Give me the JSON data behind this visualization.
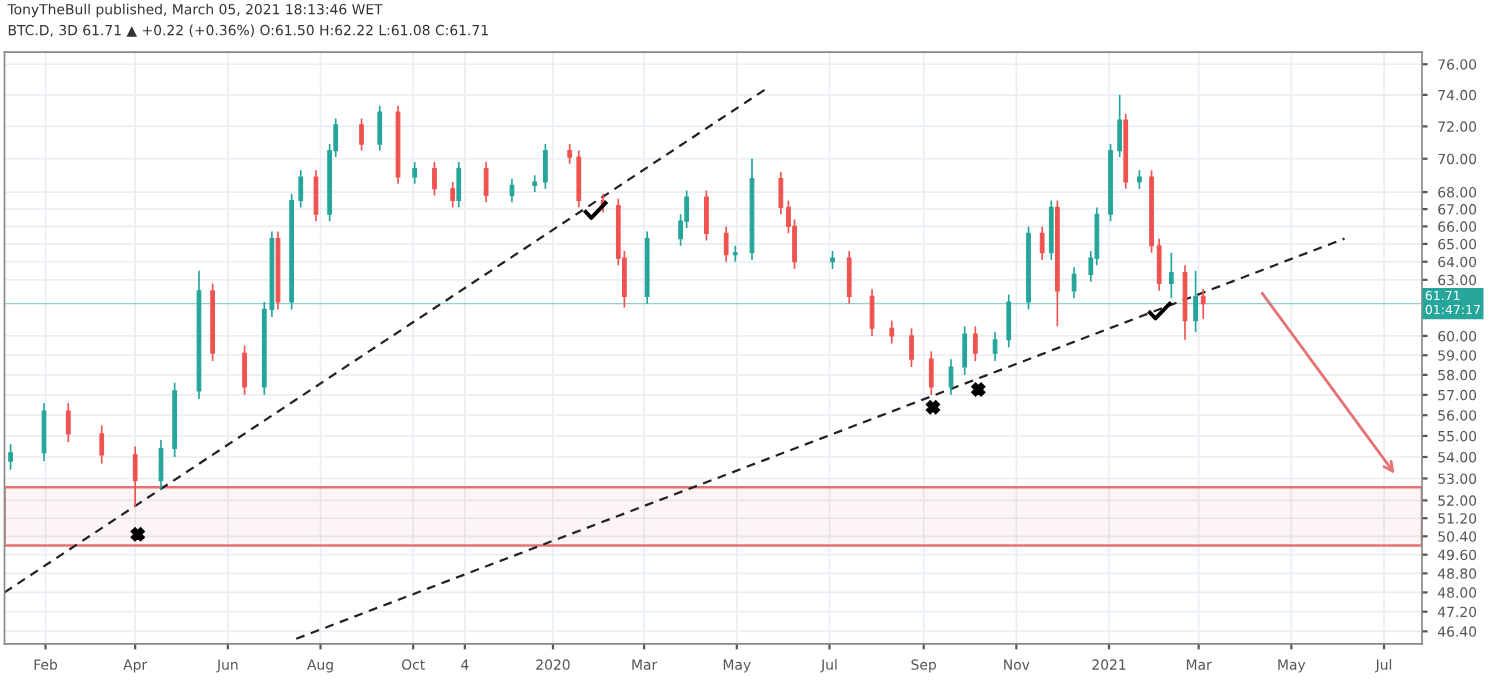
{
  "chart_data": {
    "type": "candlestick",
    "title": "BTC.D, 3D 61.71 ▲ +0.22 (+0.36%) O:61.50 H:62.22 L:61.08 C:61.71",
    "annotations": [
      "TonyTheBull published, March 05, 2021 18:13:46 WET"
    ],
    "x": [
      "2019-01-09",
      "2019-01-31",
      "2019-02-16",
      "2019-03-10",
      "2019-04-01",
      "2019-04-18",
      "2019-04-27",
      "2019-05-13",
      "2019-05-22",
      "2019-06-12",
      "2019-06-25",
      "2019-06-30",
      "2019-07-04",
      "2019-07-13",
      "2019-07-19",
      "2019-07-29",
      "2019-08-07",
      "2019-08-11",
      "2019-08-28",
      "2019-09-09",
      "2019-09-21",
      "2019-10-02",
      "2019-10-15",
      "2019-10-27",
      "2019-10-31",
      "2019-11-18",
      "2019-12-05",
      "2019-12-20",
      "2019-12-27",
      "2020-01-12",
      "2020-01-18",
      "2020-02-03",
      "2020-02-13",
      "2020-02-17",
      "2020-03-03",
      "2020-03-25",
      "2020-03-29",
      "2020-04-11",
      "2020-04-24",
      "2020-04-30",
      "2020-05-11",
      "2020-05-30",
      "2020-06-04",
      "2020-06-08",
      "2020-07-03",
      "2020-07-14",
      "2020-07-29",
      "2020-08-11",
      "2020-08-24",
      "2020-09-06",
      "2020-09-19",
      "2020-09-28",
      "2020-10-05",
      "2020-10-18",
      "2020-10-27",
      "2020-11-09",
      "2020-11-18",
      "2020-11-24",
      "2020-11-28",
      "2020-12-09",
      "2020-12-20",
      "2020-12-24",
      "2021-01-02",
      "2021-01-08",
      "2021-01-12",
      "2021-01-21",
      "2021-01-29",
      "2021-02-03",
      "2021-02-11",
      "2021-02-20",
      "2021-02-27",
      "2021-03-04"
    ],
    "ohlc": [
      [
        53.8,
        54.6,
        53.4,
        54.2
      ],
      [
        54.2,
        56.6,
        53.8,
        56.2
      ],
      [
        56.2,
        56.6,
        54.7,
        55.1
      ],
      [
        55.1,
        55.5,
        53.7,
        54.1
      ],
      [
        54.1,
        54.5,
        51.7,
        52.9
      ],
      [
        52.9,
        54.8,
        52.5,
        54.4
      ],
      [
        54.4,
        57.6,
        54.0,
        57.2
      ],
      [
        57.2,
        63.5,
        56.8,
        62.4
      ],
      [
        62.4,
        62.8,
        58.7,
        59.1
      ],
      [
        59.1,
        59.5,
        57.0,
        57.4
      ],
      [
        57.4,
        61.8,
        57.0,
        61.4
      ],
      [
        61.4,
        65.7,
        61.0,
        65.3
      ],
      [
        65.3,
        65.7,
        61.4,
        61.8
      ],
      [
        61.8,
        67.9,
        61.4,
        67.5
      ],
      [
        67.5,
        69.3,
        67.1,
        68.9
      ],
      [
        68.9,
        69.3,
        66.3,
        66.7
      ],
      [
        66.7,
        70.9,
        66.3,
        70.5
      ],
      [
        70.5,
        72.5,
        70.1,
        72.1
      ],
      [
        72.1,
        72.5,
        70.5,
        70.9
      ],
      [
        70.9,
        73.3,
        70.5,
        72.9
      ],
      [
        72.9,
        73.3,
        68.5,
        68.9
      ],
      [
        68.9,
        69.8,
        68.5,
        69.4
      ],
      [
        69.4,
        69.8,
        67.8,
        68.2
      ],
      [
        68.2,
        68.6,
        67.1,
        67.5
      ],
      [
        67.5,
        69.8,
        67.1,
        69.4
      ],
      [
        69.4,
        69.8,
        67.4,
        67.8
      ],
      [
        67.8,
        68.8,
        67.4,
        68.4
      ],
      [
        68.4,
        69.0,
        68.0,
        68.6
      ],
      [
        68.6,
        70.9,
        68.2,
        70.5
      ],
      [
        70.5,
        70.9,
        69.7,
        70.1
      ],
      [
        70.1,
        70.5,
        67.1,
        67.5
      ],
      [
        67.5,
        67.9,
        66.8,
        67.2
      ],
      [
        67.2,
        67.6,
        63.8,
        64.2
      ],
      [
        64.2,
        64.6,
        61.5,
        62.1
      ],
      [
        62.1,
        65.7,
        61.7,
        65.3
      ],
      [
        65.3,
        66.7,
        64.9,
        66.3
      ],
      [
        66.3,
        68.1,
        65.9,
        67.7
      ],
      [
        67.7,
        68.1,
        65.2,
        65.6
      ],
      [
        65.6,
        66.0,
        64.0,
        64.4
      ],
      [
        64.4,
        64.9,
        64.0,
        64.5
      ],
      [
        64.5,
        70.0,
        64.1,
        68.8
      ],
      [
        68.8,
        69.2,
        66.7,
        67.1
      ],
      [
        67.1,
        67.5,
        65.6,
        66.0
      ],
      [
        66.0,
        66.4,
        63.6,
        64.0
      ],
      [
        64.0,
        64.6,
        63.6,
        64.2
      ],
      [
        64.2,
        64.6,
        61.7,
        62.1
      ],
      [
        62.1,
        62.5,
        60.0,
        60.4
      ],
      [
        60.4,
        60.8,
        59.6,
        60.0
      ],
      [
        60.0,
        60.4,
        58.4,
        58.8
      ],
      [
        58.8,
        59.2,
        57.0,
        57.4
      ],
      [
        57.4,
        58.8,
        57.0,
        58.4
      ],
      [
        58.4,
        60.5,
        58.0,
        60.1
      ],
      [
        60.1,
        60.5,
        58.7,
        59.1
      ],
      [
        59.1,
        60.2,
        58.7,
        59.8
      ],
      [
        59.8,
        62.2,
        59.4,
        61.8
      ],
      [
        61.8,
        66.0,
        61.4,
        65.6
      ],
      [
        65.6,
        66.0,
        64.1,
        64.5
      ],
      [
        64.5,
        67.5,
        64.1,
        67.1
      ],
      [
        67.1,
        67.5,
        60.5,
        62.4
      ],
      [
        62.4,
        63.7,
        62.0,
        63.3
      ],
      [
        63.3,
        64.6,
        62.9,
        64.2
      ],
      [
        64.2,
        67.1,
        63.8,
        66.7
      ],
      [
        66.7,
        70.9,
        66.3,
        70.5
      ],
      [
        70.5,
        74.0,
        70.1,
        72.4
      ],
      [
        72.4,
        72.8,
        68.2,
        68.6
      ],
      [
        68.6,
        69.3,
        68.2,
        68.9
      ],
      [
        68.9,
        69.3,
        64.5,
        64.9
      ],
      [
        64.9,
        65.3,
        62.4,
        62.8
      ],
      [
        62.8,
        64.5,
        62.0,
        63.4
      ],
      [
        63.4,
        63.8,
        59.8,
        60.8
      ],
      [
        60.8,
        63.5,
        60.2,
        62.1
      ],
      [
        62.1,
        62.5,
        60.9,
        61.7
      ]
    ],
    "colors": [
      "#26a69a",
      "#26a69a",
      "#ef5350",
      "#ef5350",
      "#ef5350",
      "#26a69a",
      "#26a69a",
      "#26a69a",
      "#ef5350",
      "#ef5350",
      "#26a69a",
      "#26a69a",
      "#ef5350",
      "#26a69a",
      "#26a69a",
      "#ef5350",
      "#26a69a",
      "#26a69a",
      "#ef5350",
      "#26a69a",
      "#ef5350",
      "#26a69a",
      "#ef5350",
      "#ef5350",
      "#26a69a",
      "#ef5350",
      "#26a69a",
      "#26a69a",
      "#26a69a",
      "#ef5350",
      "#ef5350",
      "#ef5350",
      "#ef5350",
      "#ef5350",
      "#26a69a",
      "#26a69a",
      "#26a69a",
      "#ef5350",
      "#ef5350",
      "#26a69a",
      "#26a69a",
      "#ef5350",
      "#ef5350",
      "#ef5350",
      "#26a69a",
      "#ef5350",
      "#ef5350",
      "#ef5350",
      "#ef5350",
      "#ef5350",
      "#26a69a",
      "#26a69a",
      "#ef5350",
      "#26a69a",
      "#26a69a",
      "#26a69a",
      "#ef5350",
      "#26a69a",
      "#ef5350",
      "#26a69a",
      "#26a69a",
      "#26a69a",
      "#26a69a",
      "#26a69a",
      "#ef5350",
      "#26a69a",
      "#ef5350",
      "#ef5350",
      "#26a69a",
      "#ef5350",
      "#26a69a",
      "#ef5350"
    ],
    "series": [
      {
        "type": "line",
        "color": "#222222",
        "line_style": "dashed",
        "x": [
          "2019-01-05",
          "2020-05-22"
        ],
        "values": [
          48.0,
          74.5
        ]
      },
      {
        "type": "line",
        "color": "#222222",
        "line_style": "dashed",
        "x": [
          "2019-07-16",
          "2021-06-05"
        ],
        "values": [
          46.1,
          65.3
        ]
      }
    ],
    "bands": [
      {
        "axis": "y",
        "from": 50.0,
        "to": 52.6,
        "color": "#e57373"
      }
    ],
    "ref_lines": [
      {
        "axis": "y",
        "value": 61.71,
        "label": "61.71\n01:47:17",
        "color": "#26a69a"
      }
    ],
    "log": "y",
    "xlim": [
      "2019-01-05",
      "2021-07-26"
    ],
    "ylim": [
      45.9,
      76.8
    ],
    "xticks": [
      {
        "value": "2019-02-01",
        "label": "Feb"
      },
      {
        "value": "2019-04-01",
        "label": "Apr"
      },
      {
        "value": "2019-06-01",
        "label": "Jun"
      },
      {
        "value": "2019-08-01",
        "label": "Aug"
      },
      {
        "value": "2019-10-01",
        "label": "Oct"
      },
      {
        "value": "2019-11-04",
        "label": "4"
      },
      {
        "value": "2020-01-01",
        "label": "2020"
      },
      {
        "value": "2020-03-01",
        "label": "Mar"
      },
      {
        "value": "2020-05-01",
        "label": "May"
      },
      {
        "value": "2020-07-01",
        "label": "Jul"
      },
      {
        "value": "2020-09-01",
        "label": "Sep"
      },
      {
        "value": "2020-11-01",
        "label": "Nov"
      },
      {
        "value": "2021-01-01",
        "label": "2021"
      },
      {
        "value": "2021-03-01",
        "label": "Mar"
      },
      {
        "value": "2021-05-01",
        "label": "May"
      },
      {
        "value": "2021-07-01",
        "label": "Jul"
      }
    ],
    "yticks": [
      {
        "value": 76,
        "label": "76.00"
      },
      {
        "value": 74,
        "label": "74.00"
      },
      {
        "value": 72,
        "label": "72.00"
      },
      {
        "value": 70,
        "label": "70.00"
      },
      {
        "value": 68,
        "label": "68.00"
      },
      {
        "value": 67,
        "label": "67.00"
      },
      {
        "value": 66,
        "label": "66.00"
      },
      {
        "value": 65,
        "label": "65.00"
      },
      {
        "value": 64,
        "label": "64.00"
      },
      {
        "value": 63,
        "label": "63.00"
      },
      {
        "value": 60,
        "label": "60.00"
      },
      {
        "value": 59,
        "label": "59.00"
      },
      {
        "value": 58,
        "label": "58.00"
      },
      {
        "value": 57,
        "label": "57.00"
      },
      {
        "value": 56,
        "label": "56.00"
      },
      {
        "value": 55,
        "label": "55.00"
      },
      {
        "value": 54,
        "label": "54.00"
      },
      {
        "value": 53,
        "label": "53.00"
      },
      {
        "value": 52,
        "label": "52.00"
      },
      {
        "value": 51.2,
        "label": "51.20"
      },
      {
        "value": 50.4,
        "label": "50.40"
      },
      {
        "value": 49.6,
        "label": "49.60"
      },
      {
        "value": 48.8,
        "label": "48.80"
      },
      {
        "value": 48,
        "label": "48.00"
      },
      {
        "value": 47.2,
        "label": "47.20"
      },
      {
        "value": 46.4,
        "label": "46.40"
      }
    ],
    "grid": true,
    "legend": false
  }
}
